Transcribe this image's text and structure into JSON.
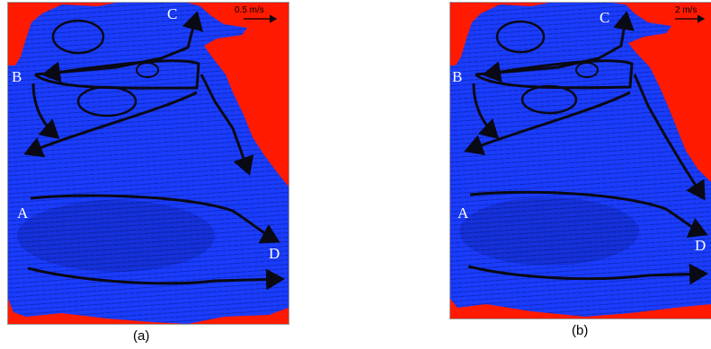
{
  "panels": [
    {
      "id": "a",
      "caption": "(a)",
      "scale_label": "0.5 m/s",
      "site_labels": {
        "A": "A",
        "B": "B",
        "C": "C",
        "D": "D"
      }
    },
    {
      "id": "b",
      "caption": "(b)",
      "scale_label": "2 m/s",
      "site_labels": {
        "A": "A",
        "B": "B",
        "C": "C",
        "D": "D"
      }
    }
  ],
  "colors": {
    "land": "#ff1a00",
    "water": "#1a3cff",
    "vectors": "#00105a",
    "current_path": "#0a0a14"
  }
}
